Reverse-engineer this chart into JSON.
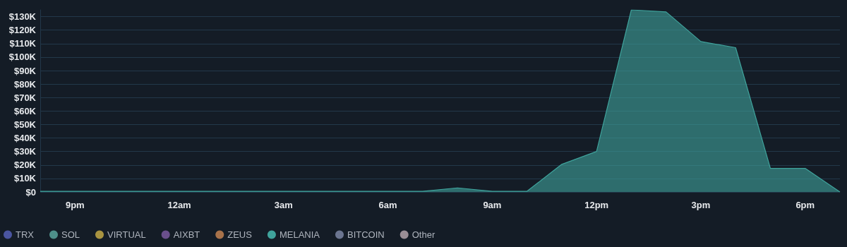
{
  "chart_data": {
    "type": "area",
    "categories": [
      null,
      "9pm",
      null,
      null,
      "12am",
      null,
      null,
      "3am",
      null,
      null,
      "6am",
      null,
      null,
      "9am",
      null,
      null,
      "12pm",
      null,
      null,
      "3pm",
      null,
      null,
      "6pm",
      null
    ],
    "ylim": [
      0,
      135000
    ],
    "yticks": [
      {
        "value": 0,
        "label": "$0"
      },
      {
        "value": 10000,
        "label": "$10K"
      },
      {
        "value": 20000,
        "label": "$20K"
      },
      {
        "value": 30000,
        "label": "$30K"
      },
      {
        "value": 40000,
        "label": "$40K"
      },
      {
        "value": 50000,
        "label": "$50K"
      },
      {
        "value": 60000,
        "label": "$60K"
      },
      {
        "value": 70000,
        "label": "$70K"
      },
      {
        "value": 80000,
        "label": "$80K"
      },
      {
        "value": 90000,
        "label": "$90K"
      },
      {
        "value": 100000,
        "label": "$100K"
      },
      {
        "value": 110000,
        "label": "$110K"
      },
      {
        "value": 120000,
        "label": "$120K"
      },
      {
        "value": 130000,
        "label": "$130K"
      }
    ],
    "grid": "y",
    "legend": "bottom left",
    "marker": "none",
    "series": [
      {
        "name": "TRX",
        "color": "#4a55a0",
        "values": [
          null,
          null,
          null,
          null,
          null,
          null,
          null,
          null,
          null,
          null,
          null,
          null,
          null,
          null,
          null,
          null,
          null,
          null,
          null,
          null,
          null,
          null,
          null,
          null
        ]
      },
      {
        "name": "SOL",
        "color": "#4e8f8a",
        "values": [
          null,
          null,
          null,
          null,
          null,
          null,
          null,
          null,
          null,
          null,
          null,
          null,
          null,
          null,
          null,
          null,
          null,
          null,
          null,
          null,
          null,
          null,
          null,
          null
        ]
      },
      {
        "name": "VIRTUAL",
        "color": "#a89340",
        "values": [
          null,
          null,
          null,
          null,
          null,
          null,
          null,
          null,
          null,
          null,
          null,
          null,
          null,
          null,
          null,
          null,
          null,
          null,
          null,
          null,
          null,
          null,
          null,
          null
        ]
      },
      {
        "name": "AIXBT",
        "color": "#6a4f8c",
        "values": [
          null,
          null,
          null,
          null,
          null,
          null,
          null,
          null,
          null,
          null,
          null,
          null,
          null,
          null,
          null,
          null,
          null,
          null,
          null,
          null,
          null,
          null,
          null,
          null
        ]
      },
      {
        "name": "ZEUS",
        "color": "#a8724a",
        "values": [
          null,
          null,
          null,
          null,
          null,
          null,
          null,
          null,
          null,
          null,
          null,
          null,
          null,
          null,
          null,
          null,
          null,
          null,
          null,
          null,
          null,
          null,
          null,
          null
        ]
      },
      {
        "name": "MELANIA",
        "color": "#3fa39c",
        "values": [
          500,
          500,
          500,
          500,
          500,
          500,
          500,
          500,
          500,
          500,
          500,
          500,
          3000,
          500,
          500,
          20500,
          30000,
          135000,
          133500,
          111500,
          107000,
          17500,
          17500,
          0
        ]
      },
      {
        "name": "BITCOIN",
        "color": "#6b7590",
        "values": [
          null,
          null,
          null,
          null,
          null,
          null,
          null,
          null,
          null,
          null,
          null,
          null,
          null,
          null,
          null,
          null,
          null,
          null,
          null,
          null,
          null,
          null,
          null,
          null
        ]
      },
      {
        "name": "Other",
        "color": "#9a8e96",
        "values": [
          null,
          null,
          null,
          null,
          null,
          null,
          null,
          null,
          null,
          null,
          null,
          null,
          null,
          null,
          null,
          null,
          null,
          null,
          null,
          null,
          null,
          null,
          null,
          null
        ]
      }
    ]
  }
}
